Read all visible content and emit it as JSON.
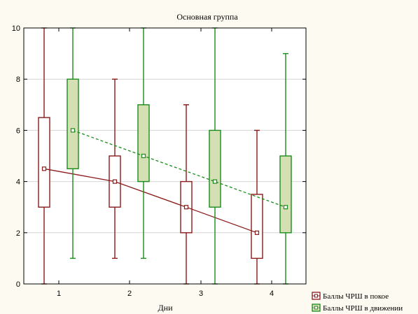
{
  "chart_data": {
    "type": "box",
    "title": "Основная группа",
    "xlabel": "Дни",
    "ylabel": "",
    "categories": [
      "1",
      "2",
      "3",
      "4"
    ],
    "yticks": [
      "0",
      "2",
      "4",
      "6",
      "8",
      "10"
    ],
    "ylim": [
      0,
      10
    ],
    "grid": true,
    "legend": "bottom-right",
    "series": [
      {
        "name": "Баллы ЧРШ в покое",
        "color": "#8b1a1a",
        "box_fill": "#ffffff",
        "line_style": "solid",
        "boxes": [
          {
            "x": "1",
            "median": 4.5,
            "q1": 3,
            "q3": 6.5,
            "min": 0,
            "max": 10
          },
          {
            "x": "2",
            "median": 4,
            "q1": 3,
            "q3": 5,
            "min": 1,
            "max": 8
          },
          {
            "x": "3",
            "median": 3,
            "q1": 2,
            "q3": 4,
            "min": 0,
            "max": 7
          },
          {
            "x": "4",
            "median": 2,
            "q1": 1,
            "q3": 3.5,
            "min": 0,
            "max": 6
          }
        ]
      },
      {
        "name": "Баллы ЧРШ в движении",
        "color": "#1a8c1a",
        "box_fill": "#d4e0b4",
        "line_style": "dashed",
        "boxes": [
          {
            "x": "1",
            "median": 6,
            "q1": 4.5,
            "q3": 8,
            "min": 1,
            "max": 10
          },
          {
            "x": "2",
            "median": 5,
            "q1": 4,
            "q3": 7,
            "min": 1,
            "max": 10
          },
          {
            "x": "3",
            "median": 4,
            "q1": 3,
            "q3": 6,
            "min": 0,
            "max": 10
          },
          {
            "x": "4",
            "median": 3,
            "q1": 2,
            "q3": 5,
            "min": 0,
            "max": 9
          }
        ]
      }
    ]
  }
}
